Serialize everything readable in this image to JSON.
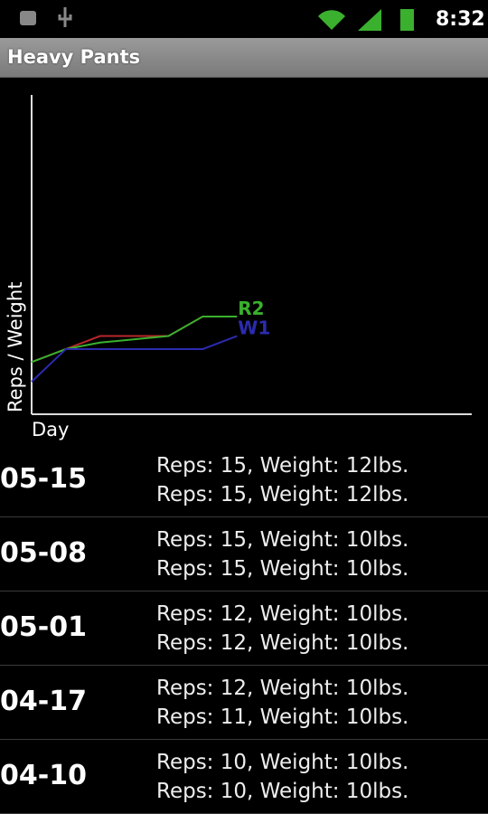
{
  "status_bar": {
    "time": "8:32"
  },
  "header": {
    "title": "Heavy Pants"
  },
  "chart_data": {
    "type": "line",
    "x_label": "Day",
    "y_label": "Reps / Weight",
    "x": [
      0,
      7,
      14,
      28,
      35,
      42
    ],
    "xlim": [
      0,
      90
    ],
    "ylim": [
      0,
      49
    ],
    "series": [
      {
        "color": "#b8262a",
        "values": [
          8,
          10,
          12,
          12,
          15,
          15
        ]
      },
      {
        "name": "R2",
        "color": "#3ab02e",
        "values": [
          8,
          10,
          11,
          12,
          15,
          15
        ]
      },
      {
        "name": "W1",
        "color": "#2b2bb0",
        "values": [
          5,
          10,
          10,
          10,
          10,
          12
        ]
      }
    ]
  },
  "entries": [
    {
      "date": "05-15",
      "sets": [
        "Reps: 15, Weight: 12lbs.",
        "Reps: 15, Weight: 12lbs."
      ]
    },
    {
      "date": "05-08",
      "sets": [
        "Reps: 15, Weight: 10lbs.",
        "Reps: 15, Weight: 10lbs."
      ]
    },
    {
      "date": "05-01",
      "sets": [
        "Reps: 12, Weight: 10lbs.",
        "Reps: 12, Weight: 10lbs."
      ]
    },
    {
      "date": "04-17",
      "sets": [
        "Reps: 12, Weight: 10lbs.",
        "Reps: 11, Weight: 10lbs."
      ]
    },
    {
      "date": "04-10",
      "sets": [
        "Reps: 10, Weight: 10lbs.",
        "Reps: 10, Weight: 10lbs."
      ]
    }
  ]
}
